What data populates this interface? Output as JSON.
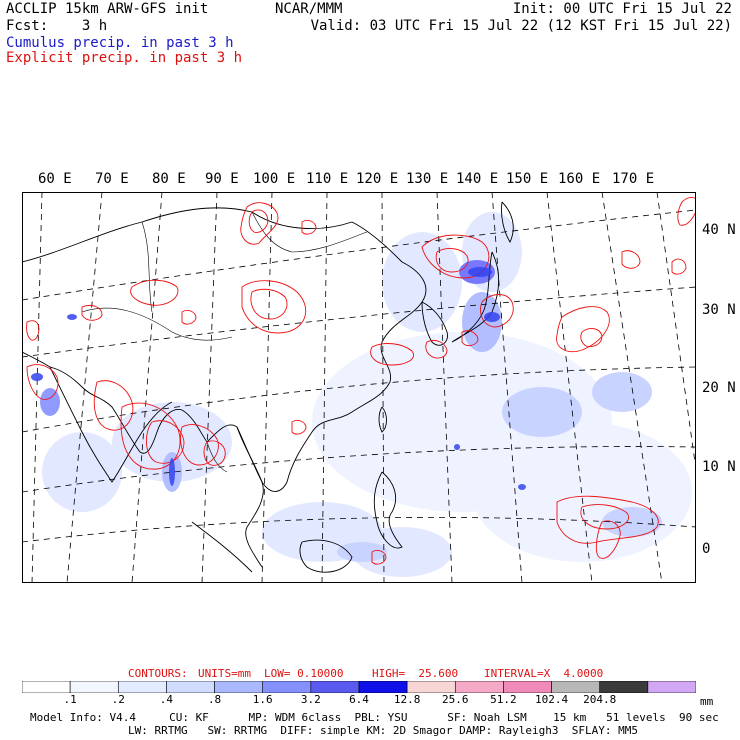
{
  "header": {
    "line1_left": "ACCLIP 15km ARW-GFS init",
    "line1_center": "NCAR/MMM",
    "line1_right": "Init: 00 UTC Fri 15 Jul 22",
    "line2_left": "Fcst:    3 h",
    "line2_right": "Valid: 03 UTC Fri 15 Jul 22 (12 KST Fri 15 Jul 22)",
    "legend_cumulus": "Cumulus precip. in past 3 h",
    "legend_explicit": "Explicit precip. in past 3 h"
  },
  "map": {
    "lon_labels": [
      "60 E",
      "70 E",
      "80 E",
      "90 E",
      "100 E",
      "110 E",
      "120 E",
      "130 E",
      "140 E",
      "150 E",
      "160 E",
      "170 E"
    ],
    "lat_labels": [
      "40 N",
      "30 N",
      "20 N",
      "10 N",
      "0"
    ],
    "colors": {
      "cumulus": "#3344ee",
      "explicit": "#ee1111",
      "coast": "#000000",
      "grid": "#000000"
    }
  },
  "contour_info": {
    "contours": "CONTOURS:",
    "units": "UNITS=mm",
    "low": "LOW= 0.10000",
    "high": "HIGH=  25.600",
    "interval": "INTERVAL=X  4.0000"
  },
  "colorbar": {
    "labels": [
      ".1",
      ".2",
      ".4",
      ".8",
      "1.6",
      "3.2",
      "6.4",
      "12.8",
      "25.6",
      "51.2",
      "102.4",
      "204.8"
    ],
    "unit": "mm",
    "colors": [
      "#ffffff",
      "#f2f6ff",
      "#e2ebff",
      "#cfdcff",
      "#aab8ff",
      "#8590ff",
      "#5a5af0",
      "#1010e8",
      "#f8d6d6",
      "#f4a9c6",
      "#f08ab8",
      "#b8b8b8",
      "#3a3a3a",
      "#d2a8f4"
    ]
  },
  "footer": {
    "line1": "Model Info: V4.4     CU: KF      MP: WDM 6class  PBL: YSU      SF: Noah LSM    15 km   51 levels  90 sec",
    "line2": "LW: RRTMG   SW: RRTMG  DIFF: simple KM: 2D Smagor DAMP: Rayleigh3  SFLAY: MM5"
  }
}
